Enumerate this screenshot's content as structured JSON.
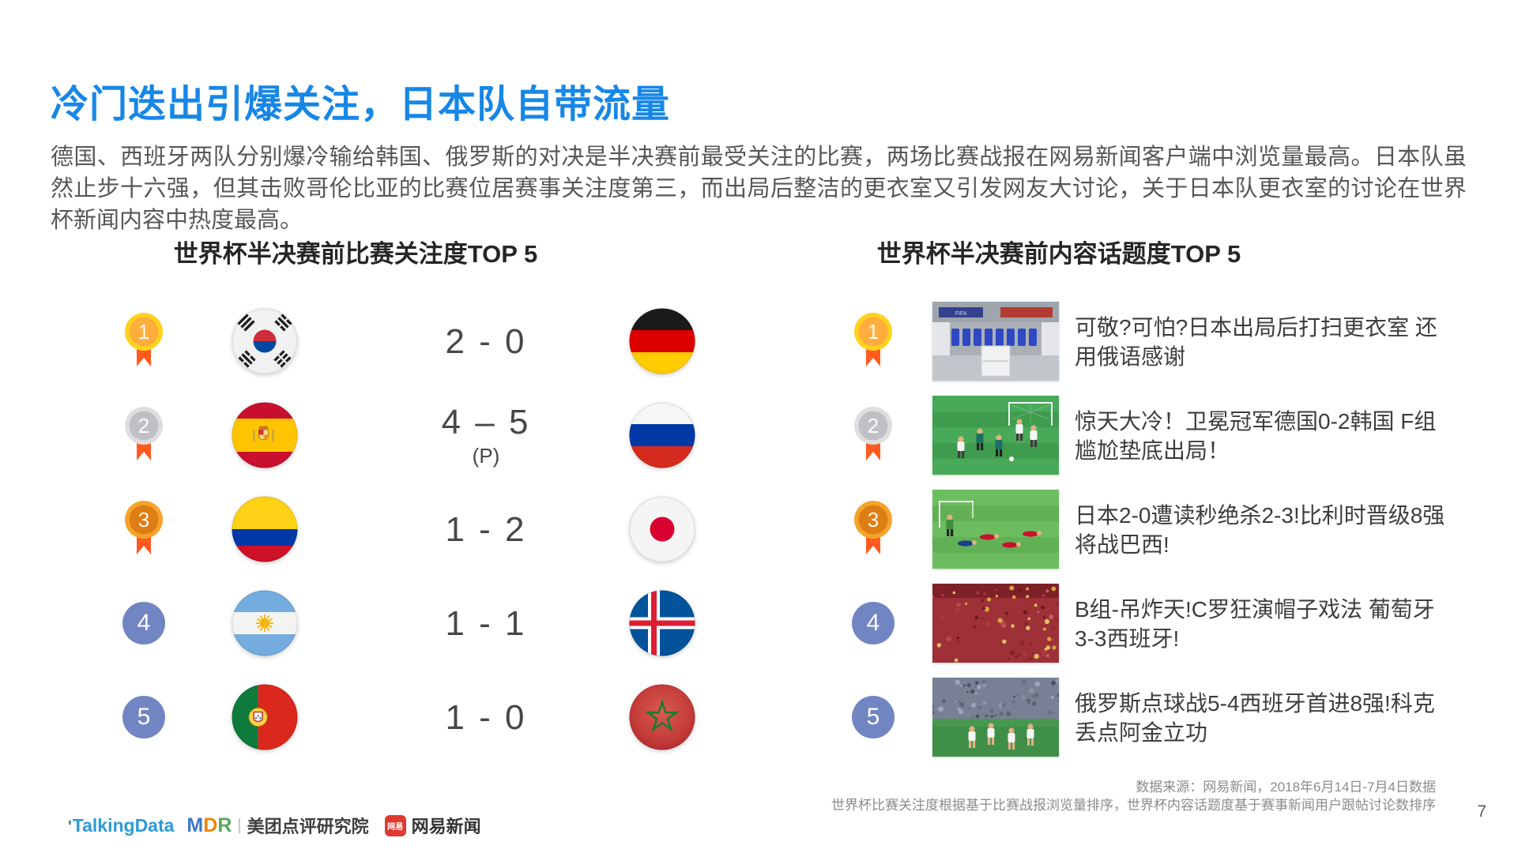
{
  "slide": {
    "title": "冷门迭出引爆关注，日本队自带流量",
    "paragraph": "德国、西班牙两队分别爆冷输给韩国、俄罗斯的对决是半决赛前最受关注的比赛，两场比赛战报在网易新闻客户端中浏览量最高。日本队虽然止步十六强，但其击败哥伦比亚的比赛位居赛事关注度第三，而出局后整洁的更衣室又引发网友大讨论，关于日本队更衣室的讨论在世界杯新闻内容中热度最高。",
    "page_number": "7"
  },
  "left_section": {
    "title": "世界杯半决赛前比赛关注度TOP 5",
    "rows": [
      {
        "rank": "1",
        "medal": "gold",
        "team1_flag": "south-korea",
        "score": "2 - 0",
        "score_note": "",
        "team2_flag": "germany"
      },
      {
        "rank": "2",
        "medal": "silver",
        "team1_flag": "spain",
        "score": "4 – 5",
        "score_note": "(P)",
        "team2_flag": "russia"
      },
      {
        "rank": "3",
        "medal": "bronze",
        "team1_flag": "colombia",
        "score": "1 - 2",
        "score_note": "",
        "team2_flag": "japan"
      },
      {
        "rank": "4",
        "medal": "plain",
        "team1_flag": "argentina",
        "score": "1 - 1",
        "score_note": "",
        "team2_flag": "iceland"
      },
      {
        "rank": "5",
        "medal": "plain",
        "team1_flag": "portugal",
        "score": "1 - 0",
        "score_note": "",
        "team2_flag": "morocco"
      }
    ]
  },
  "right_section": {
    "title": "世界杯半决赛前内容话题度TOP 5",
    "rows": [
      {
        "rank": "1",
        "medal": "gold",
        "thumbnail": "japan-locker-room",
        "title": "可敬?可怕?日本出局后打扫更衣室 还用俄语感谢"
      },
      {
        "rank": "2",
        "medal": "silver",
        "thumbnail": "germany-korea-match",
        "title": "惊天大冷！卫冕冠军德国0-2韩国 F组尴尬垫底出局！"
      },
      {
        "rank": "3",
        "medal": "bronze",
        "thumbnail": "japan-belgium-match",
        "title": "日本2-0遭读秒绝杀2-3!比利时晋级8强将战巴西!"
      },
      {
        "rank": "4",
        "medal": "plain",
        "thumbnail": "portugal-fans-crowd",
        "title": "B组-吊炸天!C罗狂演帽子戏法 葡萄牙3-3西班牙!"
      },
      {
        "rank": "5",
        "medal": "plain",
        "thumbnail": "russia-celebration",
        "title": "俄罗斯点球战5-4西班牙首进8强!科克丢点阿金立功"
      }
    ]
  },
  "footer": {
    "source_line1": "数据来源：网易新闻，2018年6月14日-7月4日数据",
    "source_line2": "世界杯比赛关注度根据基于比赛战报浏览量排序，世界杯内容话题度基于赛事新闻用户跟帖讨论数排序",
    "logos": {
      "talkingdata": "TalkingData",
      "mdr": "MDR",
      "mdr_org": "美团点评研究院",
      "netease_icon": "网易",
      "netease": "网易新闻"
    }
  },
  "colors": {
    "title_blue": "#1787E6",
    "medal_gold": "#FFD21E",
    "medal_silver": "#DEDEDE",
    "medal_bronze": "#F6A32B",
    "ribbon_orange": "#FF5A1E",
    "rank_circle_blue": "#7285C3"
  }
}
